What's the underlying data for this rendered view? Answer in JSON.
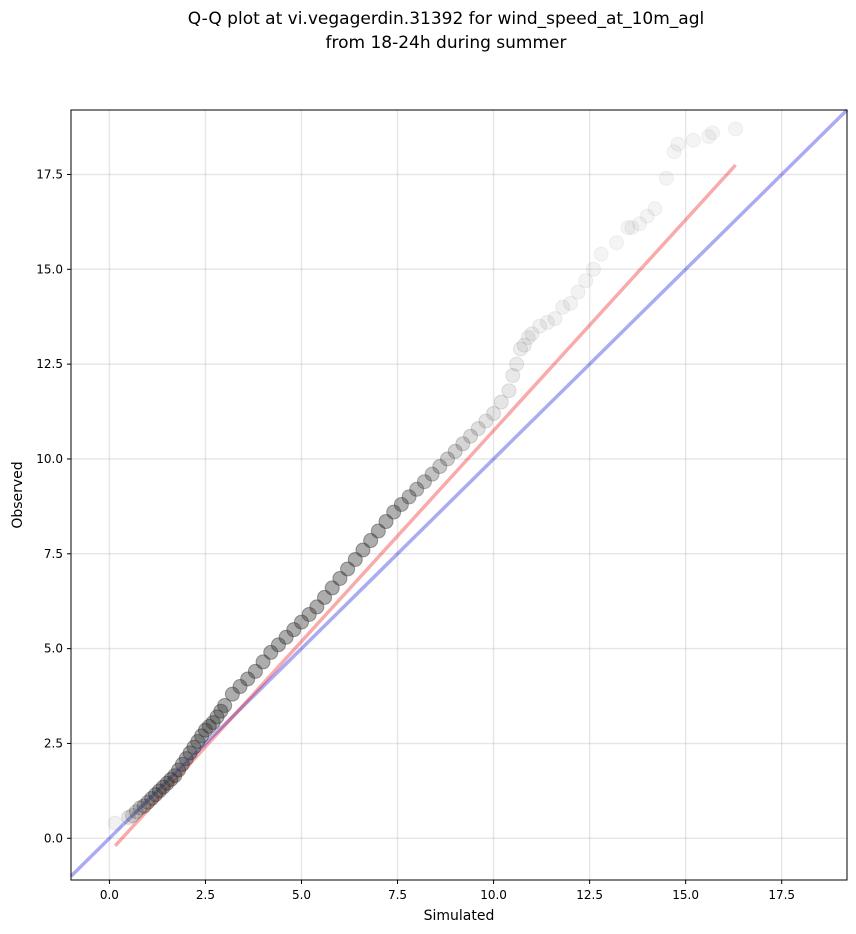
{
  "chart_data": {
    "type": "scatter",
    "title_lines": [
      "Q-Q plot at vi.vegagerdin.31392 for wind_speed_at_10m_agl",
      "from 18-24h during summer"
    ],
    "xlabel": "Simulated",
    "ylabel": "Observed",
    "xlim": [
      -1.0,
      19.2
    ],
    "ylim": [
      -1.1,
      19.2
    ],
    "xticks": [
      "0.0",
      "2.5",
      "5.0",
      "7.5",
      "10.0",
      "12.5",
      "15.0",
      "17.5"
    ],
    "yticks": [
      "0.0",
      "2.5",
      "5.0",
      "7.5",
      "10.0",
      "12.5",
      "15.0",
      "17.5"
    ],
    "grid": true,
    "identity_line": {
      "color": "#0000dd",
      "opacity": 0.33
    },
    "fit_line": {
      "x": [
        0.15,
        16.3
      ],
      "y": [
        -0.2,
        17.75
      ],
      "color": "#ee0000",
      "opacity": 0.33
    },
    "point_color": "#333333",
    "series": [
      {
        "x": [
          0.15,
          0.5,
          0.6,
          0.7,
          0.8,
          0.9,
          1.0,
          1.1,
          1.2,
          1.3,
          1.4,
          1.5,
          1.6,
          1.7,
          1.8,
          1.9,
          2.0,
          2.1,
          2.2,
          2.3,
          2.4,
          2.5,
          2.6,
          2.7,
          2.8,
          2.9,
          3.0,
          3.2,
          3.4,
          3.6,
          3.8,
          4.0,
          4.2,
          4.4,
          4.6,
          4.8,
          5.0,
          5.2,
          5.4,
          5.6,
          5.8,
          6.0,
          6.2,
          6.4,
          6.6,
          6.8,
          7.0,
          7.2,
          7.4,
          7.6,
          7.8,
          8.0,
          8.2,
          8.4,
          8.6,
          8.8,
          9.0,
          9.2,
          9.4,
          9.6,
          9.8,
          10.0,
          10.2,
          10.4,
          10.5,
          10.6,
          10.7,
          10.8,
          10.9,
          11.0,
          11.2,
          11.4,
          11.6,
          11.8,
          12.0,
          12.2,
          12.4,
          12.6,
          12.8,
          13.2,
          13.5,
          13.6,
          13.8,
          14.0,
          14.2,
          14.5,
          14.7,
          14.8,
          15.2,
          15.6,
          15.7,
          16.3
        ],
        "y": [
          0.4,
          0.55,
          0.6,
          0.7,
          0.8,
          0.85,
          0.95,
          1.05,
          1.15,
          1.25,
          1.35,
          1.45,
          1.55,
          1.65,
          1.8,
          1.95,
          2.1,
          2.25,
          2.4,
          2.55,
          2.7,
          2.85,
          2.95,
          3.05,
          3.2,
          3.35,
          3.5,
          3.8,
          4.0,
          4.2,
          4.4,
          4.65,
          4.9,
          5.1,
          5.3,
          5.5,
          5.7,
          5.9,
          6.1,
          6.35,
          6.6,
          6.85,
          7.1,
          7.35,
          7.6,
          7.85,
          8.1,
          8.35,
          8.6,
          8.8,
          9.0,
          9.2,
          9.4,
          9.6,
          9.8,
          10.0,
          10.2,
          10.4,
          10.6,
          10.8,
          11.0,
          11.2,
          11.5,
          11.8,
          12.2,
          12.5,
          12.9,
          13.0,
          13.2,
          13.3,
          13.5,
          13.6,
          13.7,
          14.0,
          14.1,
          14.4,
          14.7,
          15.0,
          15.4,
          15.7,
          16.1,
          16.1,
          16.2,
          16.4,
          16.6,
          17.4,
          18.1,
          18.3,
          18.4,
          18.5,
          18.6,
          18.7
        ],
        "alpha": [
          0.15,
          0.3,
          0.35,
          0.45,
          0.55,
          0.65,
          0.7,
          0.8,
          0.85,
          0.9,
          0.9,
          0.9,
          0.9,
          0.9,
          0.9,
          0.9,
          0.9,
          0.9,
          0.9,
          0.9,
          0.9,
          0.9,
          0.9,
          0.9,
          0.9,
          0.9,
          0.9,
          0.9,
          0.9,
          0.9,
          0.9,
          0.9,
          0.9,
          0.9,
          0.9,
          0.9,
          0.9,
          0.9,
          0.9,
          0.9,
          0.9,
          0.9,
          0.9,
          0.9,
          0.9,
          0.9,
          0.9,
          0.9,
          0.85,
          0.85,
          0.8,
          0.75,
          0.7,
          0.65,
          0.6,
          0.55,
          0.5,
          0.45,
          0.4,
          0.35,
          0.3,
          0.3,
          0.28,
          0.26,
          0.24,
          0.22,
          0.2,
          0.2,
          0.18,
          0.18,
          0.16,
          0.16,
          0.15,
          0.15,
          0.14,
          0.14,
          0.13,
          0.13,
          0.12,
          0.12,
          0.12,
          0.12,
          0.12,
          0.12,
          0.12,
          0.12,
          0.12,
          0.12,
          0.12,
          0.12,
          0.12,
          0.12
        ]
      }
    ]
  }
}
